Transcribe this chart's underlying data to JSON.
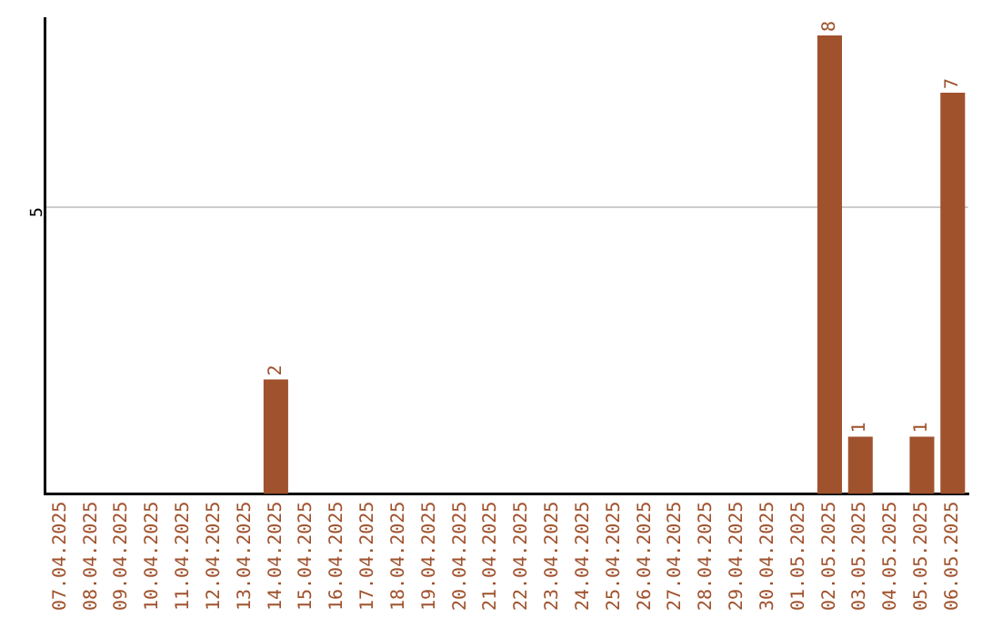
{
  "chart_data": {
    "type": "bar",
    "categories": [
      "07.04.2025",
      "08.04.2025",
      "09.04.2025",
      "10.04.2025",
      "11.04.2025",
      "12.04.2025",
      "13.04.2025",
      "14.04.2025",
      "15.04.2025",
      "16.04.2025",
      "17.04.2025",
      "18.04.2025",
      "19.04.2025",
      "20.04.2025",
      "21.04.2025",
      "22.04.2025",
      "23.04.2025",
      "24.04.2025",
      "25.04.2025",
      "26.04.2025",
      "27.04.2025",
      "28.04.2025",
      "29.04.2025",
      "30.04.2025",
      "01.05.2025",
      "02.05.2025",
      "03.05.2025",
      "04.05.2025",
      "05.05.2025",
      "06.05.2025"
    ],
    "values": [
      null,
      null,
      null,
      null,
      null,
      null,
      null,
      2,
      null,
      null,
      null,
      null,
      null,
      null,
      null,
      null,
      null,
      null,
      null,
      null,
      null,
      null,
      null,
      null,
      null,
      8,
      1,
      null,
      1,
      7
    ],
    "color": "#a0522d",
    "ylim": [
      0,
      8.3
    ],
    "yticks": [
      5
    ],
    "grid": "y",
    "data_labels": true,
    "legend": false
  }
}
